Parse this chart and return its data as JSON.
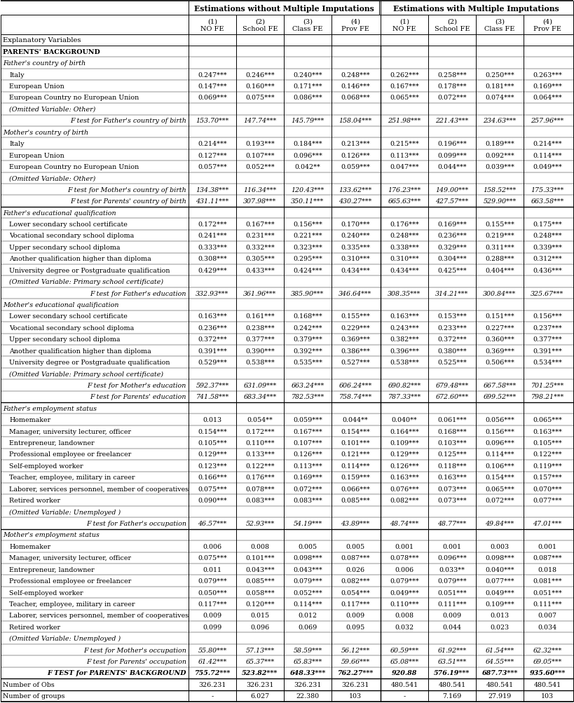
{
  "col_header_1": "Estimations without Multiple Imputations",
  "col_header_2": "Estimations with Multiple Imputations",
  "sub_headers": [
    "(1)\nNO FE",
    "(2)\nSchool FE",
    "(3)\nClass FE",
    "(4)\nProv FE",
    "(1)\nNO FE",
    "(2)\nSchool FE",
    "(3)\nClass FE",
    "(4)\nProv FE"
  ],
  "row_header": "Explanatory Variables",
  "rows": [
    {
      "label": "PARENTS' BACKGROUND",
      "values": null,
      "style": "bold",
      "indent": 0
    },
    {
      "label": "Father's country of birth",
      "values": null,
      "style": "italic",
      "indent": 0
    },
    {
      "label": "Italy",
      "values": [
        "0.247***",
        "0.246***",
        "0.240***",
        "0.248***",
        "0.262***",
        "0.258***",
        "0.250***",
        "0.263***"
      ],
      "style": "normal",
      "indent": 1
    },
    {
      "label": "European Union",
      "values": [
        "0.147***",
        "0.160***",
        "0.171***",
        "0.146***",
        "0.167***",
        "0.178***",
        "0.181***",
        "0.169***"
      ],
      "style": "normal",
      "indent": 1
    },
    {
      "label": "European Country no European Union",
      "values": [
        "0.069***",
        "0.075***",
        "0.086***",
        "0.068***",
        "0.065***",
        "0.072***",
        "0.074***",
        "0.064***"
      ],
      "style": "normal",
      "indent": 1
    },
    {
      "label": "(Omitted Variable: Other)",
      "values": null,
      "style": "italic",
      "indent": 1
    },
    {
      "label": "F test for Father's country of birth",
      "values": [
        "153.70***",
        "147.74***",
        "145.79***",
        "158.04***",
        "251.98***",
        "221.43***",
        "234.63***",
        "257.96***"
      ],
      "style": "italic_right",
      "indent": 2
    },
    {
      "label": "Mother's country of birth",
      "values": null,
      "style": "italic",
      "indent": 0
    },
    {
      "label": "Italy",
      "values": [
        "0.214***",
        "0.193***",
        "0.184***",
        "0.213***",
        "0.215***",
        "0.196***",
        "0.189***",
        "0.214***"
      ],
      "style": "normal",
      "indent": 1
    },
    {
      "label": "European Union",
      "values": [
        "0.127***",
        "0.107***",
        "0.096***",
        "0.126***",
        "0.113***",
        "0.099***",
        "0.092***",
        "0.114***"
      ],
      "style": "normal",
      "indent": 1
    },
    {
      "label": "European Country no European Union",
      "values": [
        "0.057***",
        "0.052***",
        "0.042**",
        "0.059***",
        "0.047***",
        "0.044***",
        "0.039***",
        "0.049***"
      ],
      "style": "normal",
      "indent": 1
    },
    {
      "label": "(Omitted Variable: Other)",
      "values": null,
      "style": "italic",
      "indent": 1
    },
    {
      "label": "F test for Mother's country of birth",
      "values": [
        "134.38***",
        "116.34***",
        "120.43***",
        "133.62***",
        "176.23***",
        "149.00***",
        "158.52***",
        "175.33***"
      ],
      "style": "italic_right",
      "indent": 2
    },
    {
      "label": "F test for Parents' country of birth",
      "values": [
        "431.11***",
        "307.98***",
        "350.11***",
        "430.27***",
        "665.63***",
        "427.57***",
        "529.90***",
        "663.58***"
      ],
      "style": "italic_right",
      "indent": 2
    },
    {
      "label": "Father's educational qualification",
      "values": null,
      "style": "italic",
      "indent": 0
    },
    {
      "label": "Lower secondary school certificate",
      "values": [
        "0.172***",
        "0.167***",
        "0.156***",
        "0.170***",
        "0.176***",
        "0.169***",
        "0.155***",
        "0.175***"
      ],
      "style": "normal",
      "indent": 1
    },
    {
      "label": "Vocational secondary school diploma",
      "values": [
        "0.241***",
        "0.231***",
        "0.221***",
        "0.240***",
        "0.248***",
        "0.236***",
        "0.219***",
        "0.248***"
      ],
      "style": "normal",
      "indent": 1
    },
    {
      "label": "Upper secondary school diploma",
      "values": [
        "0.333***",
        "0.332***",
        "0.323***",
        "0.335***",
        "0.338***",
        "0.329***",
        "0.311***",
        "0.339***"
      ],
      "style": "normal",
      "indent": 1
    },
    {
      "label": "Another qualification higher than diploma",
      "values": [
        "0.308***",
        "0.305***",
        "0.295***",
        "0.310***",
        "0.310***",
        "0.304***",
        "0.288***",
        "0.312***"
      ],
      "style": "normal",
      "indent": 1
    },
    {
      "label": "University degree or Postgraduate qualification",
      "values": [
        "0.429***",
        "0.433***",
        "0.424***",
        "0.434***",
        "0.434***",
        "0.425***",
        "0.404***",
        "0.436***"
      ],
      "style": "normal",
      "indent": 1
    },
    {
      "label": "(Omitted Variable: Primary school certificate)",
      "values": null,
      "style": "italic",
      "indent": 1
    },
    {
      "label": "F test for Father's education",
      "values": [
        "332.93***",
        "361.96***",
        "385.90***",
        "346.64***",
        "308.35***",
        "314.21***",
        "300.84***",
        "325.67***"
      ],
      "style": "italic_right",
      "indent": 2
    },
    {
      "label": "Mother's educational qualification",
      "values": null,
      "style": "italic",
      "indent": 0
    },
    {
      "label": "Lower secondary school certificate",
      "values": [
        "0.163***",
        "0.161***",
        "0.168***",
        "0.155***",
        "0.163***",
        "0.153***",
        "0.151***",
        "0.156***"
      ],
      "style": "normal",
      "indent": 1
    },
    {
      "label": "Vocational secondary school diploma",
      "values": [
        "0.236***",
        "0.238***",
        "0.242***",
        "0.229***",
        "0.243***",
        "0.233***",
        "0.227***",
        "0.237***"
      ],
      "style": "normal",
      "indent": 1
    },
    {
      "label": "Upper secondary school diploma",
      "values": [
        "0.372***",
        "0.377***",
        "0.379***",
        "0.369***",
        "0.382***",
        "0.372***",
        "0.360***",
        "0.377***"
      ],
      "style": "normal",
      "indent": 1
    },
    {
      "label": "Another qualification higher than diploma",
      "values": [
        "0.391***",
        "0.390***",
        "0.392***",
        "0.386***",
        "0.396***",
        "0.380***",
        "0.369***",
        "0.391***"
      ],
      "style": "normal",
      "indent": 1
    },
    {
      "label": "University degree or Postgraduate qualification",
      "values": [
        "0.529***",
        "0.538***",
        "0.535***",
        "0.527***",
        "0.538***",
        "0.525***",
        "0.506***",
        "0.534***"
      ],
      "style": "normal",
      "indent": 1
    },
    {
      "label": "(Omitted Variable: Primary school certificate)",
      "values": null,
      "style": "italic",
      "indent": 1
    },
    {
      "label": "F test for Mother's education",
      "values": [
        "592.37***",
        "631.09***",
        "663.24***",
        "606.24***",
        "690.82***",
        "679.48***",
        "667.58***",
        "701.25***"
      ],
      "style": "italic_right",
      "indent": 2
    },
    {
      "label": "F test for Parents' education",
      "values": [
        "741.58***",
        "683.34***",
        "782.53***",
        "758.74***",
        "787.33***",
        "672.60***",
        "699.52***",
        "798.21***"
      ],
      "style": "italic_right",
      "indent": 2
    },
    {
      "label": "Father's employment status",
      "values": null,
      "style": "italic",
      "indent": 0
    },
    {
      "label": "Homemaker",
      "values": [
        "0.013",
        "0.054**",
        "0.059***",
        "0.044**",
        "0.040**",
        "0.061***",
        "0.056***",
        "0.065***"
      ],
      "style": "normal",
      "indent": 1
    },
    {
      "label": "Manager, university lecturer, officer",
      "values": [
        "0.154***",
        "0.172***",
        "0.167***",
        "0.154***",
        "0.164***",
        "0.168***",
        "0.156***",
        "0.163***"
      ],
      "style": "normal",
      "indent": 1
    },
    {
      "label": "Entrepreneur, landowner",
      "values": [
        "0.105***",
        "0.110***",
        "0.107***",
        "0.101***",
        "0.109***",
        "0.103***",
        "0.096***",
        "0.105***"
      ],
      "style": "normal",
      "indent": 1
    },
    {
      "label": "Professional employee or freelancer",
      "values": [
        "0.129***",
        "0.133***",
        "0.126***",
        "0.121***",
        "0.129***",
        "0.125***",
        "0.114***",
        "0.122***"
      ],
      "style": "normal",
      "indent": 1
    },
    {
      "label": "Self-employed worker",
      "values": [
        "0.123***",
        "0.122***",
        "0.113***",
        "0.114***",
        "0.126***",
        "0.118***",
        "0.106***",
        "0.119***"
      ],
      "style": "normal",
      "indent": 1
    },
    {
      "label": "Teacher, employee, military in career",
      "values": [
        "0.166***",
        "0.176***",
        "0.169***",
        "0.159***",
        "0.163***",
        "0.163***",
        "0.154***",
        "0.157***"
      ],
      "style": "normal",
      "indent": 1
    },
    {
      "label": "Laborer, services personnel, member of cooperatives",
      "values": [
        "0.075***",
        "0.078***",
        "0.072***",
        "0.066***",
        "0.076***",
        "0.073***",
        "0.065***",
        "0.070***"
      ],
      "style": "normal",
      "indent": 1
    },
    {
      "label": "Retired worker",
      "values": [
        "0.090***",
        "0.083***",
        "0.083***",
        "0.085***",
        "0.082***",
        "0.073***",
        "0.072***",
        "0.077***"
      ],
      "style": "normal",
      "indent": 1
    },
    {
      "label": "(Omitted Variable: Unemployed )",
      "values": null,
      "style": "italic",
      "indent": 1
    },
    {
      "label": "F test for Father's occupation",
      "values": [
        "46.57***",
        "52.93***",
        "54.19***",
        "43.89***",
        "48.74***",
        "48.77***",
        "49.84***",
        "47.01***"
      ],
      "style": "italic_right",
      "indent": 2
    },
    {
      "label": "Mother's employment status",
      "values": null,
      "style": "italic",
      "indent": 0
    },
    {
      "label": "Homemaker",
      "values": [
        "0.006",
        "0.008",
        "0.005",
        "0.005",
        "0.001",
        "0.001",
        "0.003",
        "0.001"
      ],
      "style": "normal",
      "indent": 1
    },
    {
      "label": "Manager, university lecturer, officer",
      "values": [
        "0.075***",
        "0.101***",
        "0.098***",
        "0.087***",
        "0.078***",
        "0.096***",
        "0.098***",
        "0.087***"
      ],
      "style": "normal",
      "indent": 1
    },
    {
      "label": "Entrepreneur, landowner",
      "values": [
        "0.011",
        "0.043***",
        "0.043***",
        "0.026",
        "0.006",
        "0.033**",
        "0.040***",
        "0.018"
      ],
      "style": "normal",
      "indent": 1
    },
    {
      "label": "Professional employee or freelancer",
      "values": [
        "0.079***",
        "0.085***",
        "0.079***",
        "0.082***",
        "0.079***",
        "0.079***",
        "0.077***",
        "0.081***"
      ],
      "style": "normal",
      "indent": 1
    },
    {
      "label": "Self-employed worker",
      "values": [
        "0.050***",
        "0.058***",
        "0.052***",
        "0.054***",
        "0.049***",
        "0.051***",
        "0.049***",
        "0.051***"
      ],
      "style": "normal",
      "indent": 1
    },
    {
      "label": "Teacher, employee, military in career",
      "values": [
        "0.117***",
        "0.120***",
        "0.114***",
        "0.117***",
        "0.110***",
        "0.111***",
        "0.109***",
        "0.111***"
      ],
      "style": "normal",
      "indent": 1
    },
    {
      "label": "Laborer, services personnel, member of cooperatives",
      "values": [
        "0.009",
        "0.015",
        "0.012",
        "0.009",
        "0.008",
        "0.009",
        "0.013",
        "0.007"
      ],
      "style": "normal",
      "indent": 1
    },
    {
      "label": "Retired worker",
      "values": [
        "0.099",
        "0.096",
        "0.069",
        "0.095",
        "0.032",
        "0.044",
        "0.023",
        "0.034"
      ],
      "style": "normal",
      "indent": 1
    },
    {
      "label": "(Omitted Variable: Unemployed )",
      "values": null,
      "style": "italic",
      "indent": 1
    },
    {
      "label": "F test for Mother's occupation",
      "values": [
        "55.80***",
        "57.13***",
        "58.59***",
        "56.12***",
        "60.59***",
        "61.92***",
        "61.54***",
        "62.32***"
      ],
      "style": "italic_right",
      "indent": 2
    },
    {
      "label": "F test for Parents' occupation",
      "values": [
        "61.42***",
        "65.37***",
        "65.83***",
        "59.66***",
        "65.08***",
        "63.51***",
        "64.55***",
        "69.05***"
      ],
      "style": "italic_right",
      "indent": 2
    },
    {
      "label": "F TEST for PARENTS' BACKGROUND",
      "values": [
        "755.72***",
        "523.82***",
        "648.33***",
        "762.27***",
        "920.88",
        "576.19***",
        "687.73***",
        "935.60***"
      ],
      "style": "bold_italic_right",
      "indent": 2
    },
    {
      "label": "Number of Obs",
      "values": [
        "326.231",
        "326.231",
        "326.231",
        "326.231",
        "480.541",
        "480.541",
        "480.541",
        "480.541"
      ],
      "style": "normal",
      "indent": 0
    },
    {
      "label": "Number of groups",
      "values": [
        "-",
        "6.027",
        "22.380",
        "103",
        "-",
        "7.169",
        "27.919",
        "103"
      ],
      "style": "normal",
      "indent": 0
    }
  ],
  "important_separators": [
    "F test for Parents' country of birth",
    "F test for Parents' education",
    "F test for Father's occupation",
    "F TEST for PARENTS' BACKGROUND",
    "Number of Obs"
  ]
}
